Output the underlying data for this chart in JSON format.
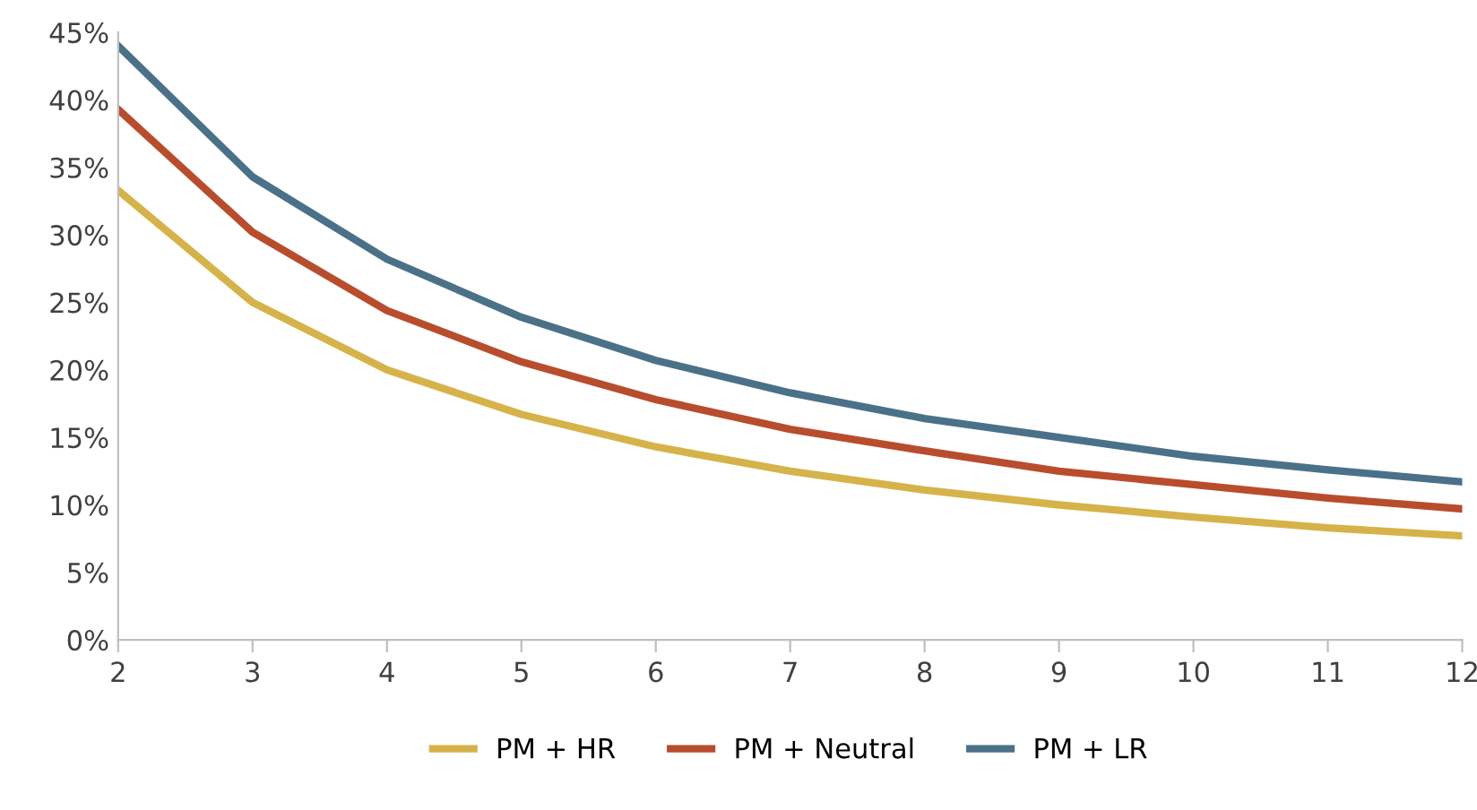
{
  "chart_data": {
    "type": "line",
    "x": [
      2,
      3,
      4,
      5,
      6,
      7,
      8,
      9,
      10,
      11,
      12
    ],
    "series": [
      {
        "name": "PM + HR",
        "color": "#d6b34a",
        "values": [
          33.3,
          25.0,
          20.0,
          16.7,
          14.3,
          12.5,
          11.1,
          10.0,
          9.1,
          8.3,
          7.7
        ]
      },
      {
        "name": "PM + Neutral",
        "color": "#b84d2e",
        "values": [
          39.3,
          30.2,
          24.4,
          20.6,
          17.8,
          15.6,
          14.0,
          12.5,
          11.5,
          10.5,
          9.7
        ]
      },
      {
        "name": "PM + LR",
        "color": "#4b7189",
        "values": [
          44.0,
          34.3,
          28.2,
          23.9,
          20.7,
          18.3,
          16.4,
          15.0,
          13.6,
          12.6,
          11.7
        ]
      }
    ],
    "xlim": [
      2,
      12
    ],
    "xticks": [
      2,
      3,
      4,
      5,
      6,
      7,
      8,
      9,
      10,
      11,
      12
    ],
    "ylim": [
      0,
      45
    ],
    "yticks": [
      {
        "value": 0,
        "label": "0%"
      },
      {
        "value": 5,
        "label": "5%"
      },
      {
        "value": 10,
        "label": "10%"
      },
      {
        "value": 15,
        "label": "15%"
      },
      {
        "value": 20,
        "label": "20%"
      },
      {
        "value": 25,
        "label": "25%"
      },
      {
        "value": 30,
        "label": "30%"
      },
      {
        "value": 35,
        "label": "35%"
      },
      {
        "value": 40,
        "label": "40%"
      },
      {
        "value": 45,
        "label": "45%"
      }
    ],
    "grid": false,
    "legend": "bottom",
    "marker": "none",
    "line_style": "solid"
  }
}
